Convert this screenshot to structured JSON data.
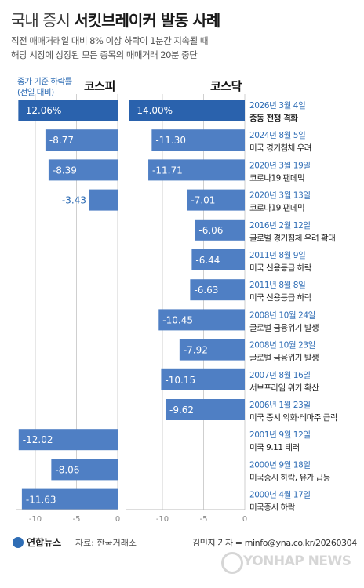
{
  "header": {
    "title_light": "국내 증시",
    "title_bold": "서킷브레이커 발동 사례",
    "subtitle_line1": "직전 매매거래일 대비 8% 이상 하락이 1분간 지속될 때",
    "subtitle_line2": "해당 시장에 상장된 모든 종목의 매매거래 20분 중단"
  },
  "legend_note": {
    "line1": "종가 기준 하락률",
    "line2": "(전일 대비)"
  },
  "colors": {
    "bar": "#4f7fc4",
    "highlight": "#2a62ad",
    "date": "#2f6db5",
    "label_on_highlight": "#ffffff",
    "grid": "#cfcfcf"
  },
  "chart_data": {
    "type": "bar",
    "panels": [
      {
        "name": "코스피",
        "xlim": [
          -12,
          0
        ],
        "xticks": [
          "-10",
          "-5",
          "0"
        ]
      },
      {
        "name": "코스닥",
        "xlim": [
          -14,
          0
        ],
        "xticks": [
          "-10",
          "-5",
          "0"
        ]
      }
    ],
    "events": [
      {
        "date": "2026년 3월 4일",
        "desc": "중동 전쟁 격화",
        "kospi": -12.06,
        "kospi_label": "-12.06%",
        "kosdaq": -14.0,
        "kosdaq_label": "-14.00%",
        "highlight": true
      },
      {
        "date": "2024년 8월 5일",
        "desc": "미국 경기침체 우려",
        "kospi": -8.77,
        "kospi_label": "-8.77",
        "kosdaq": -11.3,
        "kosdaq_label": "-11.30",
        "highlight": false
      },
      {
        "date": "2020년 3월 19일",
        "desc": "코로나19 팬데믹",
        "kospi": -8.39,
        "kospi_label": "-8.39",
        "kosdaq": -11.71,
        "kosdaq_label": "-11.71",
        "highlight": false
      },
      {
        "date": "2020년 3월 13일",
        "desc": "코로나19 팬데믹",
        "kospi": -3.43,
        "kospi_label": "-3.43",
        "kosdaq": -7.01,
        "kosdaq_label": "-7.01",
        "highlight": false
      },
      {
        "date": "2016년 2월 12일",
        "desc": "글로벌 경기침체 우려 확대",
        "kospi": null,
        "kospi_label": "",
        "kosdaq": -6.06,
        "kosdaq_label": "-6.06",
        "highlight": false
      },
      {
        "date": "2011년 8월 9일",
        "desc": "미국 신용등급 하락",
        "kospi": null,
        "kospi_label": "",
        "kosdaq": -6.44,
        "kosdaq_label": "-6.44",
        "highlight": false
      },
      {
        "date": "2011년 8월 8일",
        "desc": "미국 신용등급 하락",
        "kospi": null,
        "kospi_label": "",
        "kosdaq": -6.63,
        "kosdaq_label": "-6.63",
        "highlight": false
      },
      {
        "date": "2008년 10월 24일",
        "desc": "글로벌 금융위기 발생",
        "kospi": null,
        "kospi_label": "",
        "kosdaq": -10.45,
        "kosdaq_label": "-10.45",
        "highlight": false
      },
      {
        "date": "2008년 10월 23일",
        "desc": "글로벌 금융위기 발생",
        "kospi": null,
        "kospi_label": "",
        "kosdaq": -7.92,
        "kosdaq_label": "-7.92",
        "highlight": false
      },
      {
        "date": "2007년 8월 16일",
        "desc": "서브프라임 위기 확산",
        "kospi": null,
        "kospi_label": "",
        "kosdaq": -10.15,
        "kosdaq_label": "-10.15",
        "highlight": false
      },
      {
        "date": "2006년 1월 23일",
        "desc": "미국 증시 악화·테마주 급락",
        "kospi": null,
        "kospi_label": "",
        "kosdaq": -9.62,
        "kosdaq_label": "-9.62",
        "highlight": false
      },
      {
        "date": "2001년 9월 12일",
        "desc": "미국 9.11 테러",
        "kospi": -12.02,
        "kospi_label": "-12.02",
        "kosdaq": null,
        "kosdaq_label": "",
        "highlight": false
      },
      {
        "date": "2000년 9월 18일",
        "desc": "미국증시 하락, 유가 급등",
        "kospi": -8.06,
        "kospi_label": "-8.06",
        "kosdaq": null,
        "kosdaq_label": "",
        "highlight": false
      },
      {
        "date": "2000년 4월 17일",
        "desc": "미국증시 하락",
        "kospi": -11.63,
        "kospi_label": "-11.63",
        "kosdaq": null,
        "kosdaq_label": "",
        "highlight": false
      }
    ]
  },
  "footer": {
    "logo": "연합뉴스",
    "source": "자료: 한국거래소",
    "credit": "김민지 기자 = minfo@yna.co.kr/20260304",
    "watermark": "YONHAP NEWS"
  }
}
